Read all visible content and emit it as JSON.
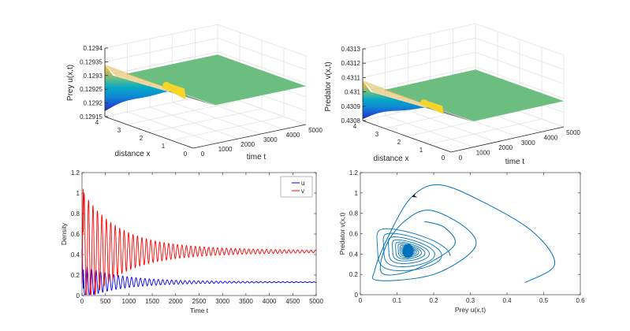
{
  "chart_data": [
    {
      "id": "surf-prey",
      "type": "surface3d",
      "title": "",
      "xlabel": "distance x",
      "ylabel": "time t",
      "zlabel": "Prey u(x,t)",
      "xlim": [
        0,
        4
      ],
      "ylim": [
        0,
        5000
      ],
      "zlim": [
        0.12915,
        0.1294
      ],
      "xticks": [
        "0",
        "1",
        "2",
        "3",
        "4"
      ],
      "yticks": [
        "0",
        "1000",
        "2000",
        "3000",
        "4000",
        "5000"
      ],
      "zticks": [
        "0.12915",
        "0.1292",
        "0.12925",
        "0.1293",
        "0.12935",
        "0.1294"
      ],
      "steady_value": 0.12929,
      "initial_profile": {
        "x_at_4": 0.12917,
        "x_at_0": 0.12934
      },
      "bump": {
        "t": 1600,
        "peak": 0.12931
      },
      "colormap": "parula"
    },
    {
      "id": "surf-predator",
      "type": "surface3d",
      "title": "",
      "xlabel": "distance x",
      "ylabel": "time t",
      "zlabel": "Predator v(x,t)",
      "xlim": [
        0,
        4
      ],
      "ylim": [
        0,
        5000
      ],
      "zlim": [
        0.4308,
        0.4313
      ],
      "xticks": [
        "0",
        "1",
        "2",
        "3",
        "4"
      ],
      "yticks": [
        "0",
        "1000",
        "2000",
        "3000",
        "4000",
        "5000"
      ],
      "zticks": [
        "0.4308",
        "0.4309",
        "0.431",
        "0.4311",
        "0.4312",
        "0.4313"
      ],
      "steady_value": 0.43098,
      "initial_profile": {
        "x_at_4": 0.43081,
        "x_at_0": 0.43108
      },
      "bump": {
        "t": 1600,
        "peak": 0.43101
      },
      "colormap": "parula"
    },
    {
      "id": "time-series",
      "type": "line",
      "title": "",
      "xlabel": "Time t",
      "ylabel": "Density",
      "xlim": [
        0,
        5000
      ],
      "ylim": [
        0,
        1.2
      ],
      "xticks": [
        "0",
        "500",
        "1000",
        "1500",
        "2000",
        "2500",
        "3000",
        "3500",
        "4000",
        "4500",
        "5000"
      ],
      "yticks": [
        "0",
        "0.2",
        "0.4",
        "0.6",
        "0.8",
        "1",
        "1.2"
      ],
      "legend": {
        "placement": "top-right",
        "entries": [
          "u",
          "v"
        ]
      },
      "series": [
        {
          "name": "u",
          "color": "#0000ff",
          "equilibrium": 0.13,
          "initial": 0.45,
          "first_min": 0.04,
          "first_peak": 0.31,
          "period": 95,
          "decay_time": 700
        },
        {
          "name": "v",
          "color": "#ff0000",
          "equilibrium": 0.43,
          "initial": 0.12,
          "first_max": 1.08,
          "first_peak_after": 0.82,
          "period": 95,
          "decay_time": 700
        }
      ]
    },
    {
      "id": "phase-portrait",
      "type": "line",
      "title": "",
      "xlabel": "Prey u(x,t)",
      "ylabel": "Predator v(x,t)",
      "xlim": [
        0,
        0.6
      ],
      "ylim": [
        0,
        1.2
      ],
      "xticks": [
        "0",
        "0.1",
        "0.2",
        "0.3",
        "0.4",
        "0.5",
        "0.6"
      ],
      "yticks": [
        "0",
        "0.2",
        "0.4",
        "0.6",
        "0.8",
        "1",
        "1.2"
      ],
      "series": [
        {
          "name": "trajectory",
          "color": "#0072bd",
          "start": [
            0.45,
            0.12
          ],
          "path_points": [
            [
              0.45,
              0.12
            ],
            [
              0.53,
              0.3
            ],
            [
              0.47,
              0.62
            ],
            [
              0.33,
              0.92
            ],
            [
              0.215,
              1.08
            ],
            [
              0.14,
              0.96
            ],
            [
              0.08,
              0.6
            ],
            [
              0.04,
              0.25
            ],
            [
              0.05,
              0.14
            ],
            [
              0.2,
              0.2
            ],
            [
              0.31,
              0.45
            ],
            [
              0.29,
              0.65
            ],
            [
              0.19,
              0.83
            ],
            [
              0.12,
              0.72
            ],
            [
              0.07,
              0.48
            ],
            [
              0.06,
              0.21
            ],
            [
              0.15,
              0.25
            ],
            [
              0.255,
              0.48
            ],
            [
              0.23,
              0.66
            ],
            [
              0.175,
              0.72
            ]
          ],
          "equilibrium": [
            0.13,
            0.43
          ],
          "arrow_at": [
            0.14,
            0.96
          ]
        }
      ]
    }
  ]
}
